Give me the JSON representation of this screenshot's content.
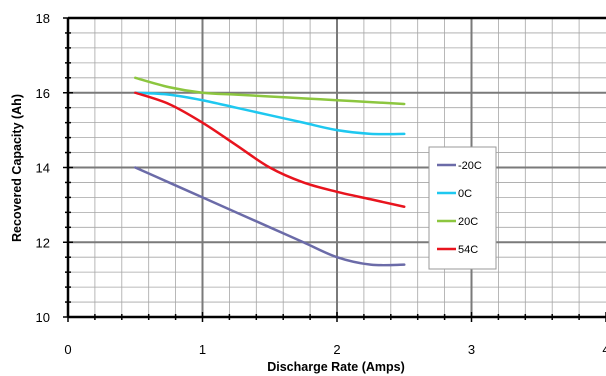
{
  "chart_data": {
    "type": "line",
    "xlabel": "Discharge Rate (Amps)",
    "ylabel": "Recovered Capacity (Ah)",
    "xlim": [
      0,
      4
    ],
    "ylim": [
      10,
      18
    ],
    "x_ticks": [
      "0",
      "1",
      "2",
      "3",
      "4"
    ],
    "y_ticks": [
      "10",
      "12",
      "14",
      "16",
      "18"
    ],
    "grid": true,
    "legend_position": "right",
    "series": [
      {
        "name": "-20C",
        "color": "#6b6ba8",
        "points": [
          [
            0.5,
            14.0
          ],
          [
            0.75,
            13.6
          ],
          [
            1.0,
            13.2
          ],
          [
            1.25,
            12.8
          ],
          [
            1.5,
            12.4
          ],
          [
            1.75,
            12.0
          ],
          [
            2.0,
            11.6
          ],
          [
            2.25,
            11.4
          ],
          [
            2.5,
            11.4
          ]
        ]
      },
      {
        "name": "0C",
        "color": "#1ec8f0",
        "points": [
          [
            0.5,
            16.0
          ],
          [
            0.75,
            15.95
          ],
          [
            1.0,
            15.8
          ],
          [
            1.25,
            15.6
          ],
          [
            1.5,
            15.4
          ],
          [
            1.75,
            15.2
          ],
          [
            2.0,
            15.0
          ],
          [
            2.25,
            14.9
          ],
          [
            2.5,
            14.9
          ]
        ]
      },
      {
        "name": "20C",
        "color": "#8cc63f",
        "points": [
          [
            0.5,
            16.4
          ],
          [
            0.75,
            16.15
          ],
          [
            1.0,
            16.0
          ],
          [
            1.25,
            15.95
          ],
          [
            1.5,
            15.9
          ],
          [
            1.75,
            15.85
          ],
          [
            2.0,
            15.8
          ],
          [
            2.25,
            15.75
          ],
          [
            2.5,
            15.7
          ]
        ]
      },
      {
        "name": "54C",
        "color": "#e8141e",
        "points": [
          [
            0.5,
            16.0
          ],
          [
            0.75,
            15.7
          ],
          [
            1.0,
            15.2
          ],
          [
            1.25,
            14.6
          ],
          [
            1.5,
            14.0
          ],
          [
            1.75,
            13.6
          ],
          [
            2.0,
            13.35
          ],
          [
            2.25,
            13.15
          ],
          [
            2.5,
            12.95
          ]
        ]
      }
    ]
  }
}
